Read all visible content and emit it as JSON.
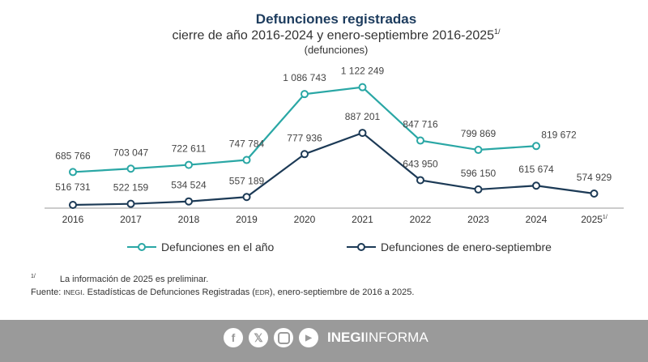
{
  "chart_data": {
    "type": "line",
    "title": "Defunciones registradas",
    "subtitle": "cierre de año 2016-2024 y enero-septiembre 2016-2025",
    "subtitle_note": "1/",
    "unit": "(defunciones)",
    "categories": [
      "2016",
      "2017",
      "2018",
      "2019",
      "2020",
      "2021",
      "2022",
      "2023",
      "2024",
      "2025"
    ],
    "category_note": {
      "2025": "1/"
    },
    "ylim": [
      500000,
      1150000
    ],
    "grid": false,
    "legend_position": "bottom",
    "series": [
      {
        "name": "Defunciones en el año",
        "color": "#2aa7a5",
        "values": [
          685766,
          703047,
          722611,
          747784,
          1086743,
          1122249,
          847716,
          799869,
          819672,
          null
        ],
        "labels": [
          "685 766",
          "703 047",
          "722 611",
          "747 784",
          "1 086 743",
          "1 122 249",
          "847 716",
          "799 869",
          "819 672",
          null
        ]
      },
      {
        "name": "Defunciones de enero-septiembre",
        "color": "#1c3a56",
        "values": [
          516731,
          522159,
          534524,
          557189,
          777936,
          887201,
          643950,
          596150,
          615674,
          574929
        ],
        "labels": [
          "516 731",
          "522 159",
          "534 524",
          "557 189",
          "777 936",
          "887 201",
          "643 950",
          "596 150",
          "615 674",
          "574 929"
        ]
      }
    ]
  },
  "notes": {
    "marker": "1/",
    "preliminary": "La información de 2025 es preliminar.",
    "source_label": "Fuente:",
    "source_org": "INEGI",
    "source_text_a": ". Estadísticas de Defunciones Registradas (",
    "source_abbr": "EDR",
    "source_text_b": "), enero-septiembre de 2016 a 2025."
  },
  "footer": {
    "icons": [
      "facebook-icon",
      "x-icon",
      "instagram-icon",
      "youtube-icon"
    ],
    "brand_bold": "INEGI",
    "brand_light": "INFORMA"
  }
}
